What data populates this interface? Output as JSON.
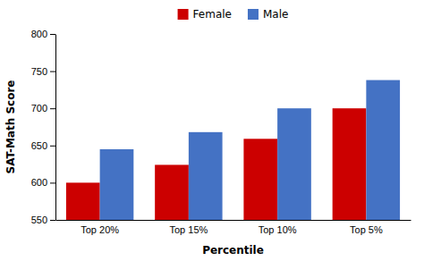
{
  "chart_data": {
    "type": "bar",
    "categories": [
      "Top 20%",
      "Top 15%",
      "Top 10%",
      "Top 5%"
    ],
    "series": [
      {
        "name": "Female",
        "color": "#cc0000",
        "values": [
          600,
          624,
          659,
          700
        ]
      },
      {
        "name": "Male",
        "color": "#4472c4",
        "values": [
          645,
          668,
          700,
          738
        ]
      }
    ],
    "xlabel": "Percentile",
    "ylabel": "SAT-Math Score",
    "ylim": [
      550,
      800
    ],
    "yticks": [
      550,
      600,
      650,
      700,
      750,
      800
    ],
    "grid": false,
    "legend": "top"
  }
}
